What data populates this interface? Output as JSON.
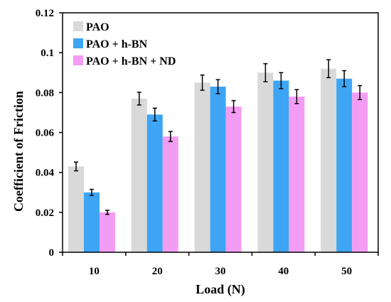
{
  "chart_data": {
    "type": "bar",
    "title": "",
    "xlabel": "Load (N)",
    "ylabel": "Coefficient of Friction",
    "categories": [
      "10",
      "20",
      "30",
      "40",
      "50"
    ],
    "ylim": [
      0,
      0.12
    ],
    "yticks": [
      "0",
      "0.02",
      "0.04",
      "0.06",
      "0.08",
      "0.1",
      "0.12"
    ],
    "grid": false,
    "legend_position": "top-left",
    "series": [
      {
        "name": "PAO",
        "color": "#d9d9d9",
        "values": [
          0.043,
          0.077,
          0.085,
          0.09,
          0.092
        ],
        "errors": [
          0.0022,
          0.0032,
          0.0038,
          0.0045,
          0.0045
        ]
      },
      {
        "name": "PAO + h-BN",
        "color": "#3ea5f4",
        "values": [
          0.03,
          0.069,
          0.083,
          0.086,
          0.087
        ],
        "errors": [
          0.0015,
          0.0032,
          0.0035,
          0.004,
          0.004
        ]
      },
      {
        "name": "PAO + h-BN + ND",
        "color": "#f39cf3",
        "values": [
          0.02,
          0.058,
          0.073,
          0.078,
          0.08
        ],
        "errors": [
          0.001,
          0.0025,
          0.003,
          0.0035,
          0.0035
        ]
      }
    ]
  }
}
